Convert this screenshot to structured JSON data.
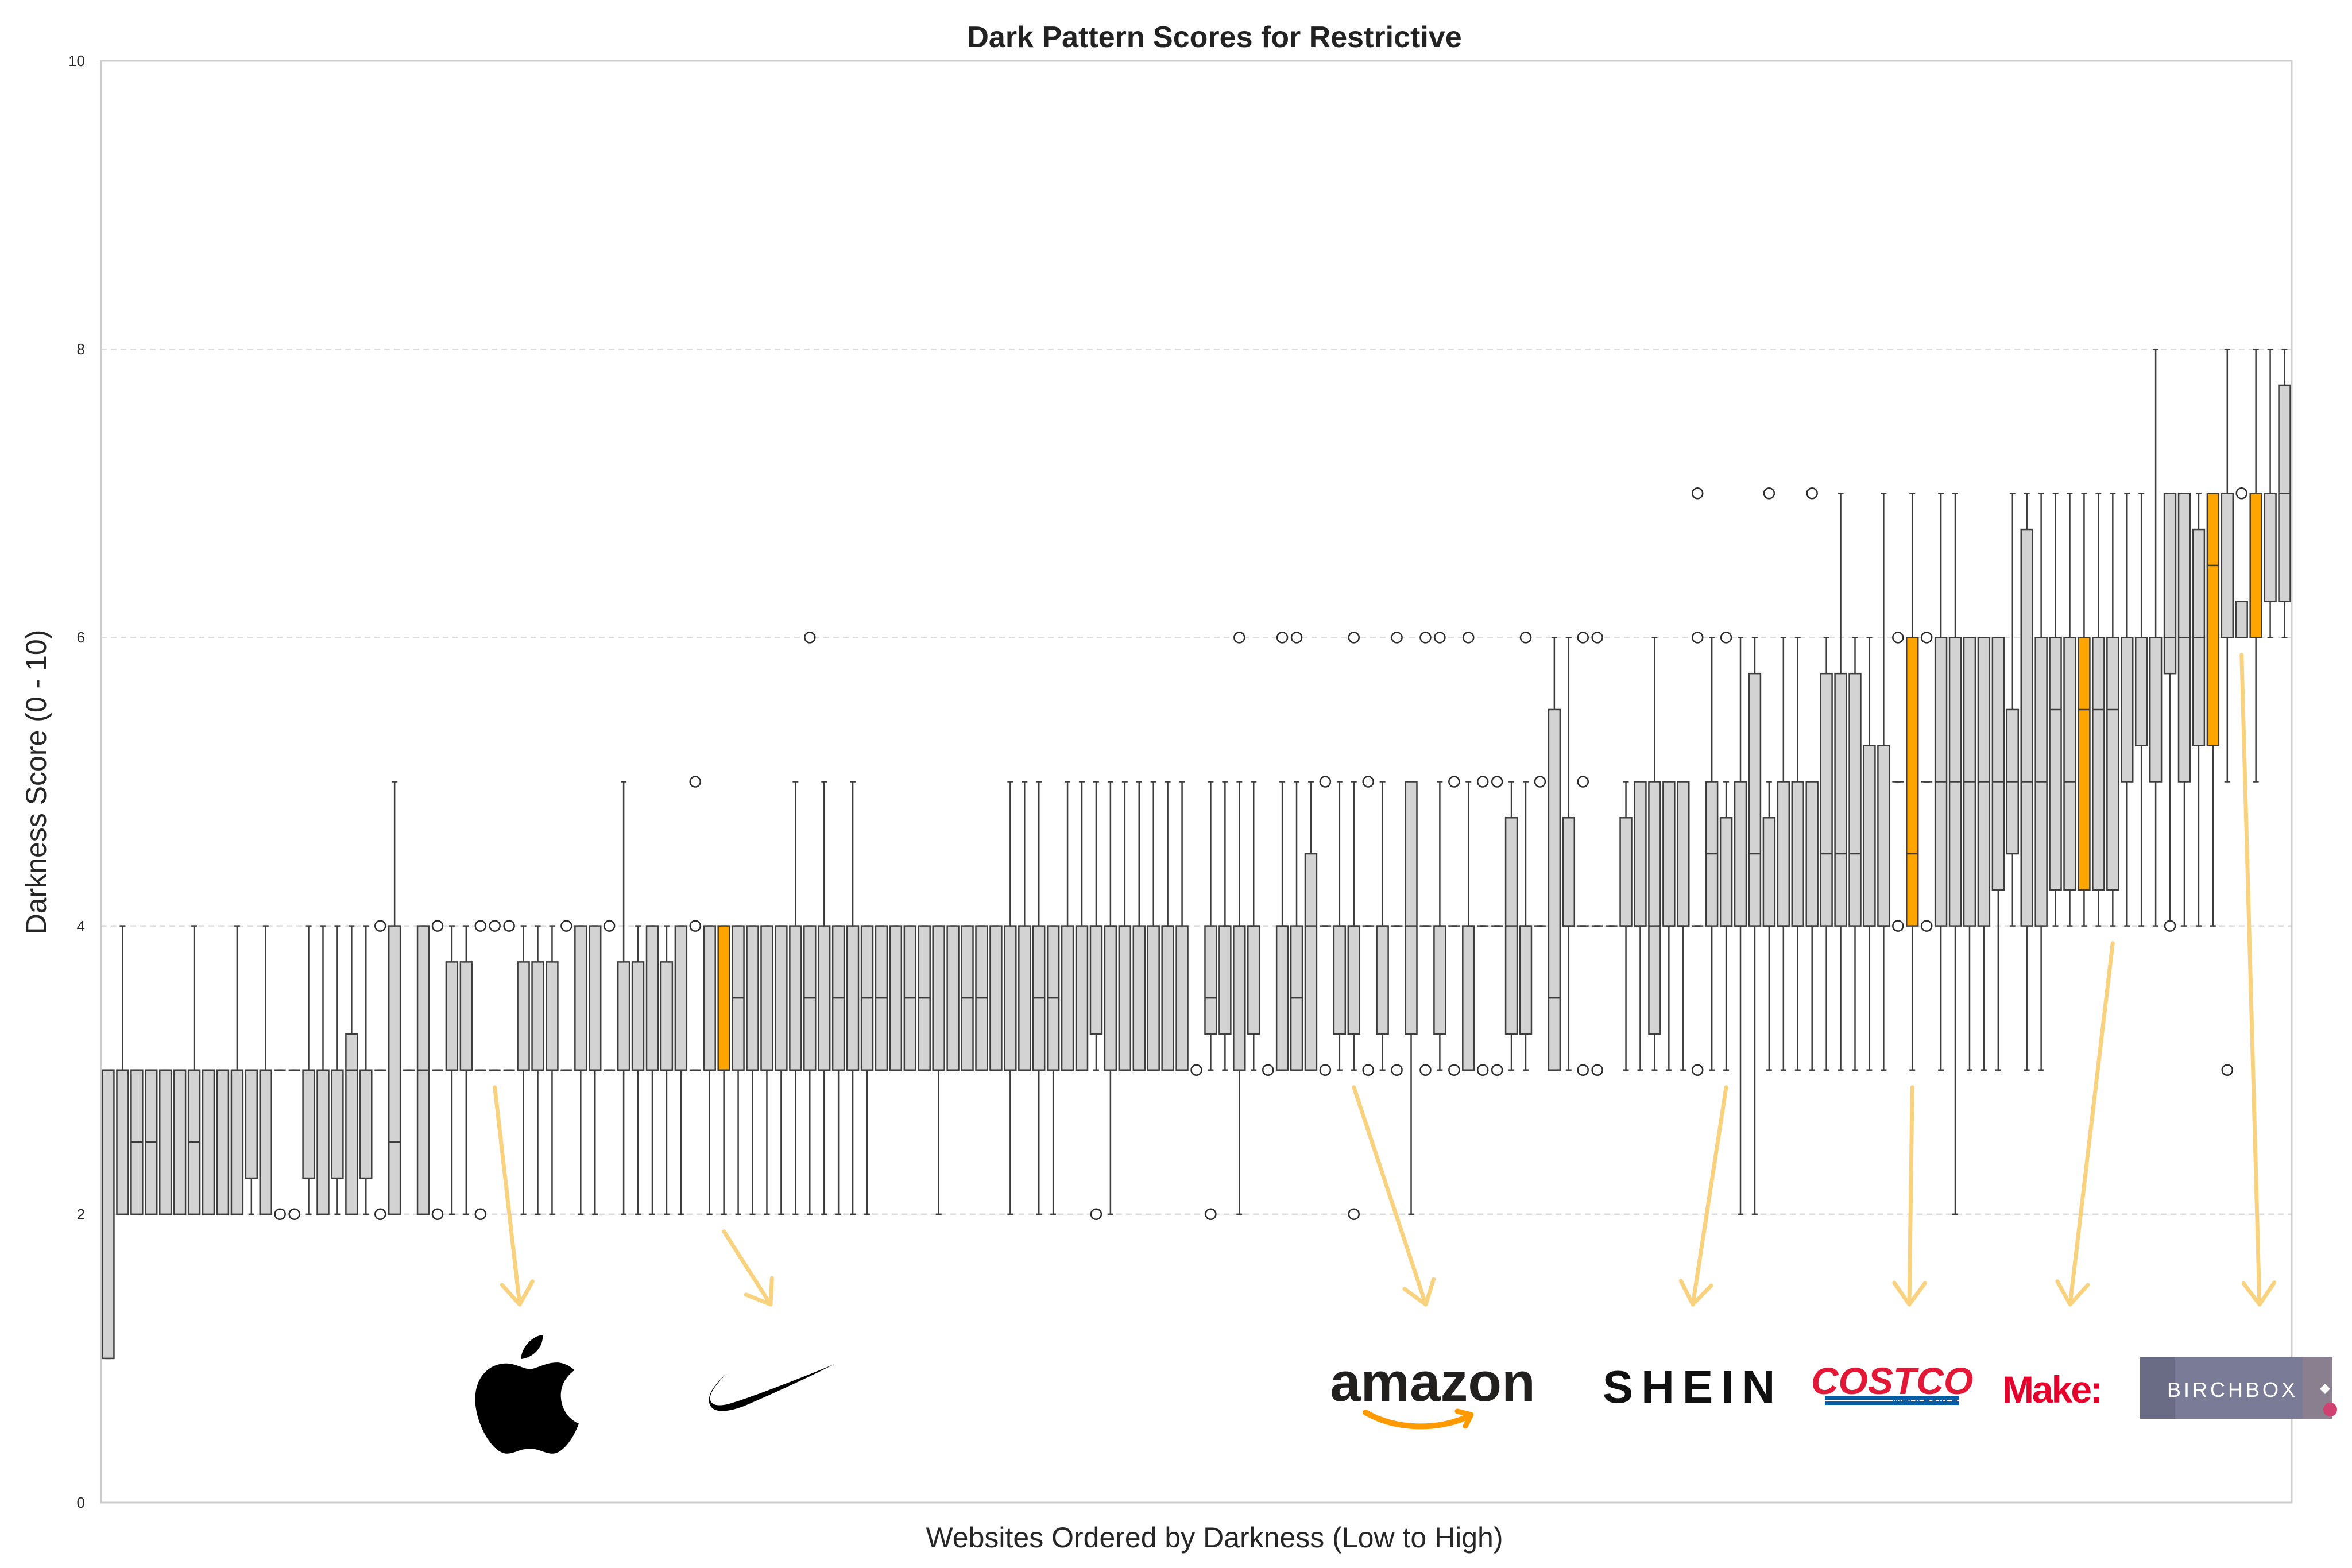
{
  "chart_data": {
    "type": "box",
    "title": "Dark Pattern Scores for Restrictive",
    "xlabel": "Websites Ordered by Darkness (Low to High)",
    "ylabel": "Darkness Score (0 - 10)",
    "ylim": [
      0,
      10
    ],
    "yticks": [
      "0",
      "2",
      "4",
      "6",
      "8",
      "10"
    ],
    "grid": "horizontal dashed",
    "colors": {
      "box": "#d3d3d3",
      "highlight": "#ffa500",
      "line": "#3d3d3d",
      "arrow": "#f8d27e"
    },
    "boxes": [
      {
        "q1": 1,
        "med": 3,
        "q3": 3,
        "lo": 1,
        "hi": 3
      },
      {
        "q1": 2,
        "med": 3,
        "q3": 3,
        "lo": 2,
        "hi": 4
      },
      {
        "q1": 2,
        "med": 2.5,
        "q3": 3,
        "lo": 2,
        "hi": 3
      },
      {
        "q1": 2,
        "med": 2.5,
        "q3": 3,
        "lo": 2,
        "hi": 3
      },
      {
        "q1": 2,
        "med": 3,
        "q3": 3,
        "lo": 2,
        "hi": 3
      },
      {
        "q1": 2,
        "med": 3,
        "q3": 3,
        "lo": 2,
        "hi": 3
      },
      {
        "q1": 2,
        "med": 2.5,
        "q3": 3,
        "lo": 2,
        "hi": 4
      },
      {
        "q1": 2,
        "med": 3,
        "q3": 3,
        "lo": 2,
        "hi": 3
      },
      {
        "q1": 2,
        "med": 3,
        "q3": 3,
        "lo": 2,
        "hi": 3
      },
      {
        "q1": 2,
        "med": 3,
        "q3": 3,
        "lo": 2,
        "hi": 4
      },
      {
        "q1": 2.25,
        "med": 3,
        "q3": 3,
        "lo": 2,
        "hi": 3
      },
      {
        "q1": 2,
        "med": 3,
        "q3": 3,
        "lo": 2,
        "hi": 4
      },
      {
        "q1": 3,
        "med": 3,
        "q3": 3,
        "lo": 3,
        "hi": 3,
        "out": [
          2
        ]
      },
      {
        "q1": 3,
        "med": 3,
        "q3": 3,
        "lo": 3,
        "hi": 3,
        "out": [
          2
        ]
      },
      {
        "q1": 2.25,
        "med": 3,
        "q3": 3,
        "lo": 2,
        "hi": 4
      },
      {
        "q1": 2,
        "med": 3,
        "q3": 3,
        "lo": 2,
        "hi": 4
      },
      {
        "q1": 2.25,
        "med": 3,
        "q3": 3,
        "lo": 2,
        "hi": 4
      },
      {
        "q1": 2,
        "med": 3,
        "q3": 3.25,
        "lo": 2,
        "hi": 4
      },
      {
        "q1": 2.25,
        "med": 3,
        "q3": 3,
        "lo": 2,
        "hi": 4
      },
      {
        "q1": 3,
        "med": 3,
        "q3": 3,
        "lo": 3,
        "hi": 3,
        "out": [
          2,
          4
        ]
      },
      {
        "q1": 2,
        "med": 2.5,
        "q3": 4,
        "lo": 2,
        "hi": 5
      },
      {
        "q1": 3,
        "med": 3,
        "q3": 3,
        "lo": 3,
        "hi": 3
      },
      {
        "q1": 2,
        "med": 3,
        "q3": 4,
        "lo": 2,
        "hi": 4
      },
      {
        "q1": 3,
        "med": 3,
        "q3": 3,
        "lo": 3,
        "hi": 3,
        "out": [
          2,
          4
        ]
      },
      {
        "q1": 3,
        "med": 3,
        "q3": 3.75,
        "lo": 2,
        "hi": 4
      },
      {
        "q1": 3,
        "med": 3,
        "q3": 3.75,
        "lo": 2,
        "hi": 4
      },
      {
        "q1": 3,
        "med": 3,
        "q3": 3,
        "lo": 3,
        "hi": 3,
        "out": [
          2,
          4
        ]
      },
      {
        "q1": 3,
        "med": 3,
        "q3": 3,
        "lo": 3,
        "hi": 3,
        "out": [
          4
        ]
      },
      {
        "q1": 3,
        "med": 3,
        "q3": 3,
        "lo": 3,
        "hi": 3,
        "out": [
          4
        ]
      },
      {
        "q1": 3,
        "med": 3,
        "q3": 3.75,
        "lo": 2,
        "hi": 4
      },
      {
        "q1": 3,
        "med": 3,
        "q3": 3.75,
        "lo": 2,
        "hi": 4
      },
      {
        "q1": 3,
        "med": 3,
        "q3": 3.75,
        "lo": 2,
        "hi": 4
      },
      {
        "q1": 3,
        "med": 3,
        "q3": 3,
        "lo": 3,
        "hi": 3,
        "out": [
          4
        ]
      },
      {
        "q1": 3,
        "med": 3,
        "q3": 4,
        "lo": 2,
        "hi": 4
      },
      {
        "q1": 3,
        "med": 3,
        "q3": 4,
        "lo": 2,
        "hi": 4
      },
      {
        "q1": 3,
        "med": 3,
        "q3": 3,
        "lo": 3,
        "hi": 3,
        "out": [
          4
        ]
      },
      {
        "q1": 3,
        "med": 3,
        "q3": 3.75,
        "lo": 2,
        "hi": 5
      },
      {
        "q1": 3,
        "med": 3,
        "q3": 3.75,
        "lo": 2,
        "hi": 4
      },
      {
        "q1": 3,
        "med": 3,
        "q3": 4,
        "lo": 2,
        "hi": 4
      },
      {
        "q1": 3,
        "med": 3,
        "q3": 3.75,
        "lo": 2,
        "hi": 4
      },
      {
        "q1": 3,
        "med": 3,
        "q3": 4,
        "lo": 2,
        "hi": 4
      },
      {
        "q1": 3,
        "med": 3,
        "q3": 3,
        "lo": 3,
        "hi": 3,
        "out": [
          4,
          5
        ]
      },
      {
        "q1": 3,
        "med": 3,
        "q3": 4,
        "lo": 2,
        "hi": 4
      },
      {
        "q1": 3,
        "med": 3,
        "q3": 4,
        "lo": 2,
        "hi": 4,
        "hl": true
      },
      {
        "q1": 3,
        "med": 3.5,
        "q3": 4,
        "lo": 2,
        "hi": 4
      },
      {
        "q1": 3,
        "med": 3,
        "q3": 4,
        "lo": 2,
        "hi": 4
      },
      {
        "q1": 3,
        "med": 3,
        "q3": 4,
        "lo": 2,
        "hi": 4
      },
      {
        "q1": 3,
        "med": 3,
        "q3": 4,
        "lo": 2,
        "hi": 4
      },
      {
        "q1": 3,
        "med": 3,
        "q3": 4,
        "lo": 2,
        "hi": 5
      },
      {
        "q1": 3,
        "med": 3.5,
        "q3": 4,
        "lo": 2,
        "hi": 4,
        "out": [
          6
        ]
      },
      {
        "q1": 3,
        "med": 3,
        "q3": 4,
        "lo": 2,
        "hi": 5
      },
      {
        "q1": 3,
        "med": 3.5,
        "q3": 4,
        "lo": 2,
        "hi": 4
      },
      {
        "q1": 3,
        "med": 3,
        "q3": 4,
        "lo": 2,
        "hi": 5
      },
      {
        "q1": 3,
        "med": 3.5,
        "q3": 4,
        "lo": 2,
        "hi": 4
      },
      {
        "q1": 3,
        "med": 3.5,
        "q3": 4,
        "lo": 3,
        "hi": 4
      },
      {
        "q1": 3,
        "med": 3,
        "q3": 4,
        "lo": 3,
        "hi": 4
      },
      {
        "q1": 3,
        "med": 3.5,
        "q3": 4,
        "lo": 3,
        "hi": 4
      },
      {
        "q1": 3,
        "med": 3.5,
        "q3": 4,
        "lo": 3,
        "hi": 4
      },
      {
        "q1": 3,
        "med": 3,
        "q3": 4,
        "lo": 2,
        "hi": 4
      },
      {
        "q1": 3,
        "med": 3,
        "q3": 4,
        "lo": 3,
        "hi": 4
      },
      {
        "q1": 3,
        "med": 3.5,
        "q3": 4,
        "lo": 3,
        "hi": 4
      },
      {
        "q1": 3,
        "med": 3.5,
        "q3": 4,
        "lo": 3,
        "hi": 4
      },
      {
        "q1": 3,
        "med": 3,
        "q3": 4,
        "lo": 3,
        "hi": 4
      },
      {
        "q1": 3,
        "med": 3,
        "q3": 4,
        "lo": 2,
        "hi": 5
      },
      {
        "q1": 3,
        "med": 3,
        "q3": 4,
        "lo": 3,
        "hi": 5
      },
      {
        "q1": 3,
        "med": 3.5,
        "q3": 4,
        "lo": 2,
        "hi": 5
      },
      {
        "q1": 3,
        "med": 3.5,
        "q3": 4,
        "lo": 2,
        "hi": 4
      },
      {
        "q1": 3,
        "med": 3,
        "q3": 4,
        "lo": 3,
        "hi": 5
      },
      {
        "q1": 3,
        "med": 3,
        "q3": 4,
        "lo": 3,
        "hi": 5
      },
      {
        "q1": 3.25,
        "med": 4,
        "q3": 4,
        "lo": 3,
        "hi": 5,
        "out": [
          2
        ]
      },
      {
        "q1": 3,
        "med": 4,
        "q3": 4,
        "lo": 2,
        "hi": 5
      },
      {
        "q1": 3,
        "med": 4,
        "q3": 4,
        "lo": 3,
        "hi": 5
      },
      {
        "q1": 3,
        "med": 3,
        "q3": 4,
        "lo": 3,
        "hi": 5
      },
      {
        "q1": 3,
        "med": 3,
        "q3": 4,
        "lo": 3,
        "hi": 5
      },
      {
        "q1": 3,
        "med": 4,
        "q3": 4,
        "lo": 3,
        "hi": 5
      },
      {
        "q1": 3,
        "med": 3,
        "q3": 4,
        "lo": 3,
        "hi": 5
      },
      {
        "q1": 3,
        "med": 3,
        "q3": 3,
        "lo": 3,
        "hi": 3,
        "out": [
          3
        ]
      },
      {
        "q1": 3.25,
        "med": 3.5,
        "q3": 4,
        "lo": 3,
        "hi": 5,
        "out": [
          2
        ]
      },
      {
        "q1": 3.25,
        "med": 4,
        "q3": 4,
        "lo": 3,
        "hi": 5
      },
      {
        "q1": 3,
        "med": 4,
        "q3": 4,
        "lo": 2,
        "hi": 5,
        "out": [
          6
        ]
      },
      {
        "q1": 3.25,
        "med": 4,
        "q3": 4,
        "lo": 3,
        "hi": 5
      },
      {
        "q1": 3,
        "med": 3,
        "q3": 3,
        "lo": 3,
        "hi": 3,
        "out": [
          3
        ]
      },
      {
        "q1": 3,
        "med": 4,
        "q3": 4,
        "lo": 3,
        "hi": 5,
        "out": [
          6
        ]
      },
      {
        "q1": 3,
        "med": 3.5,
        "q3": 4,
        "lo": 3,
        "hi": 5,
        "out": [
          6
        ]
      },
      {
        "q1": 3,
        "med": 4,
        "q3": 4.5,
        "lo": 3,
        "hi": 5
      },
      {
        "q1": 4,
        "med": 4,
        "q3": 4,
        "lo": 4,
        "hi": 4,
        "out": [
          3,
          5
        ]
      },
      {
        "q1": 3.25,
        "med": 4,
        "q3": 4,
        "lo": 3,
        "hi": 5
      },
      {
        "q1": 3.25,
        "med": 4,
        "q3": 4,
        "lo": 3,
        "hi": 5,
        "out": [
          2,
          6
        ]
      },
      {
        "q1": 4,
        "med": 4,
        "q3": 4,
        "lo": 4,
        "hi": 4,
        "out": [
          3,
          5
        ]
      },
      {
        "q1": 3.25,
        "med": 4,
        "q3": 4,
        "lo": 3,
        "hi": 5
      },
      {
        "q1": 4,
        "med": 4,
        "q3": 4,
        "lo": 4,
        "hi": 4,
        "out": [
          3,
          6
        ]
      },
      {
        "q1": 3.25,
        "med": 4,
        "q3": 5,
        "lo": 2,
        "hi": 5
      },
      {
        "q1": 4,
        "med": 4,
        "q3": 4,
        "lo": 4,
        "hi": 4,
        "out": [
          3,
          6
        ]
      },
      {
        "q1": 3.25,
        "med": 4,
        "q3": 4,
        "lo": 3,
        "hi": 5,
        "out": [
          6
        ]
      },
      {
        "q1": 4,
        "med": 4,
        "q3": 4,
        "lo": 4,
        "hi": 4,
        "out": [
          3,
          5
        ]
      },
      {
        "q1": 3,
        "med": 4,
        "q3": 4,
        "lo": 3,
        "hi": 5,
        "out": [
          6
        ]
      },
      {
        "q1": 4,
        "med": 4,
        "q3": 4,
        "lo": 4,
        "hi": 4,
        "out": [
          3,
          5
        ]
      },
      {
        "q1": 4,
        "med": 4,
        "q3": 4,
        "lo": 4,
        "hi": 4,
        "out": [
          3,
          5
        ]
      },
      {
        "q1": 3.25,
        "med": 4,
        "q3": 4.75,
        "lo": 3,
        "hi": 5
      },
      {
        "q1": 3.25,
        "med": 4,
        "q3": 4,
        "lo": 3,
        "hi": 5,
        "out": [
          6
        ]
      },
      {
        "q1": 4,
        "med": 4,
        "q3": 4,
        "lo": 4,
        "hi": 4,
        "out": [
          5
        ]
      },
      {
        "q1": 3,
        "med": 3.5,
        "q3": 5.5,
        "lo": 3,
        "hi": 6
      },
      {
        "q1": 4,
        "med": 4,
        "q3": 4.75,
        "lo": 3,
        "hi": 6
      },
      {
        "q1": 4,
        "med": 4,
        "q3": 4,
        "lo": 4,
        "hi": 4,
        "out": [
          3,
          5,
          6
        ]
      },
      {
        "q1": 4,
        "med": 4,
        "q3": 4,
        "lo": 4,
        "hi": 4,
        "out": [
          3,
          6
        ]
      },
      {
        "q1": 4,
        "med": 4,
        "q3": 4,
        "lo": 4,
        "hi": 4
      },
      {
        "q1": 4,
        "med": 4,
        "q3": 4.75,
        "lo": 3,
        "hi": 5
      },
      {
        "q1": 4,
        "med": 4,
        "q3": 5,
        "lo": 3,
        "hi": 5
      },
      {
        "q1": 3.25,
        "med": 4,
        "q3": 5,
        "lo": 3,
        "hi": 6
      },
      {
        "q1": 4,
        "med": 4,
        "q3": 5,
        "lo": 3,
        "hi": 5
      },
      {
        "q1": 4,
        "med": 4,
        "q3": 5,
        "lo": 3,
        "hi": 5
      },
      {
        "q1": 4,
        "med": 4,
        "q3": 4,
        "lo": 4,
        "hi": 4,
        "out": [
          3,
          6,
          7
        ]
      },
      {
        "q1": 4,
        "med": 4.5,
        "q3": 5,
        "lo": 3,
        "hi": 6
      },
      {
        "q1": 4,
        "med": 4,
        "q3": 4.75,
        "lo": 3,
        "hi": 5,
        "out": [
          6
        ]
      },
      {
        "q1": 4,
        "med": 4,
        "q3": 5,
        "lo": 2,
        "hi": 6
      },
      {
        "q1": 4,
        "med": 4.5,
        "q3": 5.75,
        "lo": 2,
        "hi": 6
      },
      {
        "q1": 4,
        "med": 4,
        "q3": 4.75,
        "lo": 3,
        "hi": 5,
        "out": [
          7
        ]
      },
      {
        "q1": 4,
        "med": 4,
        "q3": 5,
        "lo": 3,
        "hi": 6
      },
      {
        "q1": 4,
        "med": 4,
        "q3": 5,
        "lo": 3,
        "hi": 6
      },
      {
        "q1": 4,
        "med": 4,
        "q3": 5,
        "lo": 3,
        "hi": 5,
        "out": [
          7
        ]
      },
      {
        "q1": 4,
        "med": 4.5,
        "q3": 5.75,
        "lo": 3,
        "hi": 6
      },
      {
        "q1": 4,
        "med": 4.5,
        "q3": 5.75,
        "lo": 3,
        "hi": 7
      },
      {
        "q1": 4,
        "med": 4.5,
        "q3": 5.75,
        "lo": 3,
        "hi": 6
      },
      {
        "q1": 4,
        "med": 4,
        "q3": 5.25,
        "lo": 3,
        "hi": 6
      },
      {
        "q1": 4,
        "med": 4,
        "q3": 5.25,
        "lo": 3,
        "hi": 7
      },
      {
        "q1": 5,
        "med": 5,
        "q3": 5,
        "lo": 5,
        "hi": 5,
        "out": [
          4,
          6
        ]
      },
      {
        "q1": 4,
        "med": 4.5,
        "q3": 6,
        "lo": 3,
        "hi": 7,
        "hl": true
      },
      {
        "q1": 5,
        "med": 5,
        "q3": 5,
        "lo": 5,
        "hi": 5,
        "out": [
          4,
          6
        ]
      },
      {
        "q1": 4,
        "med": 5,
        "q3": 6,
        "lo": 3,
        "hi": 7
      },
      {
        "q1": 4,
        "med": 5,
        "q3": 6,
        "lo": 2,
        "hi": 7
      },
      {
        "q1": 4,
        "med": 5,
        "q3": 6,
        "lo": 3,
        "hi": 6
      },
      {
        "q1": 4,
        "med": 5,
        "q3": 6,
        "lo": 3,
        "hi": 6
      },
      {
        "q1": 4.25,
        "med": 5,
        "q3": 6,
        "lo": 3,
        "hi": 6
      },
      {
        "q1": 4.5,
        "med": 5,
        "q3": 5.5,
        "lo": 4,
        "hi": 7
      },
      {
        "q1": 4,
        "med": 5,
        "q3": 6.75,
        "lo": 3,
        "hi": 7
      },
      {
        "q1": 4,
        "med": 5,
        "q3": 6,
        "lo": 3,
        "hi": 7
      },
      {
        "q1": 4.25,
        "med": 5.5,
        "q3": 6,
        "lo": 4,
        "hi": 7
      },
      {
        "q1": 4.25,
        "med": 5,
        "q3": 6,
        "lo": 4,
        "hi": 7
      },
      {
        "q1": 4.25,
        "med": 5.5,
        "q3": 6,
        "lo": 4,
        "hi": 7,
        "hl": true
      },
      {
        "q1": 4.25,
        "med": 5.5,
        "q3": 6,
        "lo": 4,
        "hi": 7
      },
      {
        "q1": 4.25,
        "med": 5.5,
        "q3": 6,
        "lo": 4,
        "hi": 7
      },
      {
        "q1": 5,
        "med": 6,
        "q3": 6,
        "lo": 4,
        "hi": 7
      },
      {
        "q1": 5.25,
        "med": 6,
        "q3": 6,
        "lo": 4,
        "hi": 7
      },
      {
        "q1": 5,
        "med": 6,
        "q3": 6,
        "lo": 4,
        "hi": 8
      },
      {
        "q1": 5.75,
        "med": 6,
        "q3": 7,
        "lo": 4,
        "hi": 7,
        "out": [
          4
        ]
      },
      {
        "q1": 5,
        "med": 6,
        "q3": 7,
        "lo": 4,
        "hi": 7
      },
      {
        "q1": 5.25,
        "med": 6,
        "q3": 6.75,
        "lo": 4,
        "hi": 7
      },
      {
        "q1": 5.25,
        "med": 6.5,
        "q3": 7,
        "lo": 4,
        "hi": 7,
        "hl": true
      },
      {
        "q1": 6,
        "med": 6,
        "q3": 7,
        "lo": 5,
        "hi": 8,
        "out": [
          3
        ]
      },
      {
        "q1": 6,
        "med": 6,
        "q3": 6.25,
        "lo": 6,
        "hi": 6.25,
        "out": [
          7
        ]
      },
      {
        "q1": 6,
        "med": 7,
        "q3": 7,
        "lo": 5,
        "hi": 8,
        "hl": true
      },
      {
        "q1": 6.25,
        "med": 7,
        "q3": 7,
        "lo": 6,
        "hi": 8
      },
      {
        "q1": 6.25,
        "med": 7,
        "q3": 7.75,
        "lo": 6,
        "hi": 8
      }
    ],
    "annotations": [
      {
        "logo": "apple-logo",
        "box_index": 27
      },
      {
        "logo": "nike-logo",
        "box_index": 43
      },
      {
        "logo": "amazon-logo",
        "box_index": 87
      },
      {
        "logo": "shein-logo",
        "box_index": 113
      },
      {
        "logo": "costco-logo",
        "box_index": 126
      },
      {
        "logo": "make-logo",
        "box_index": 140
      },
      {
        "logo": "birchbox-logo",
        "box_index": 149
      }
    ],
    "logos": {
      "amazon": "amazon",
      "shein": "SHEIN",
      "costco": "COSTCO",
      "costco_sub": "WHOLESALE",
      "make": "Make:",
      "birchbox": "BIRCHBOX"
    }
  }
}
